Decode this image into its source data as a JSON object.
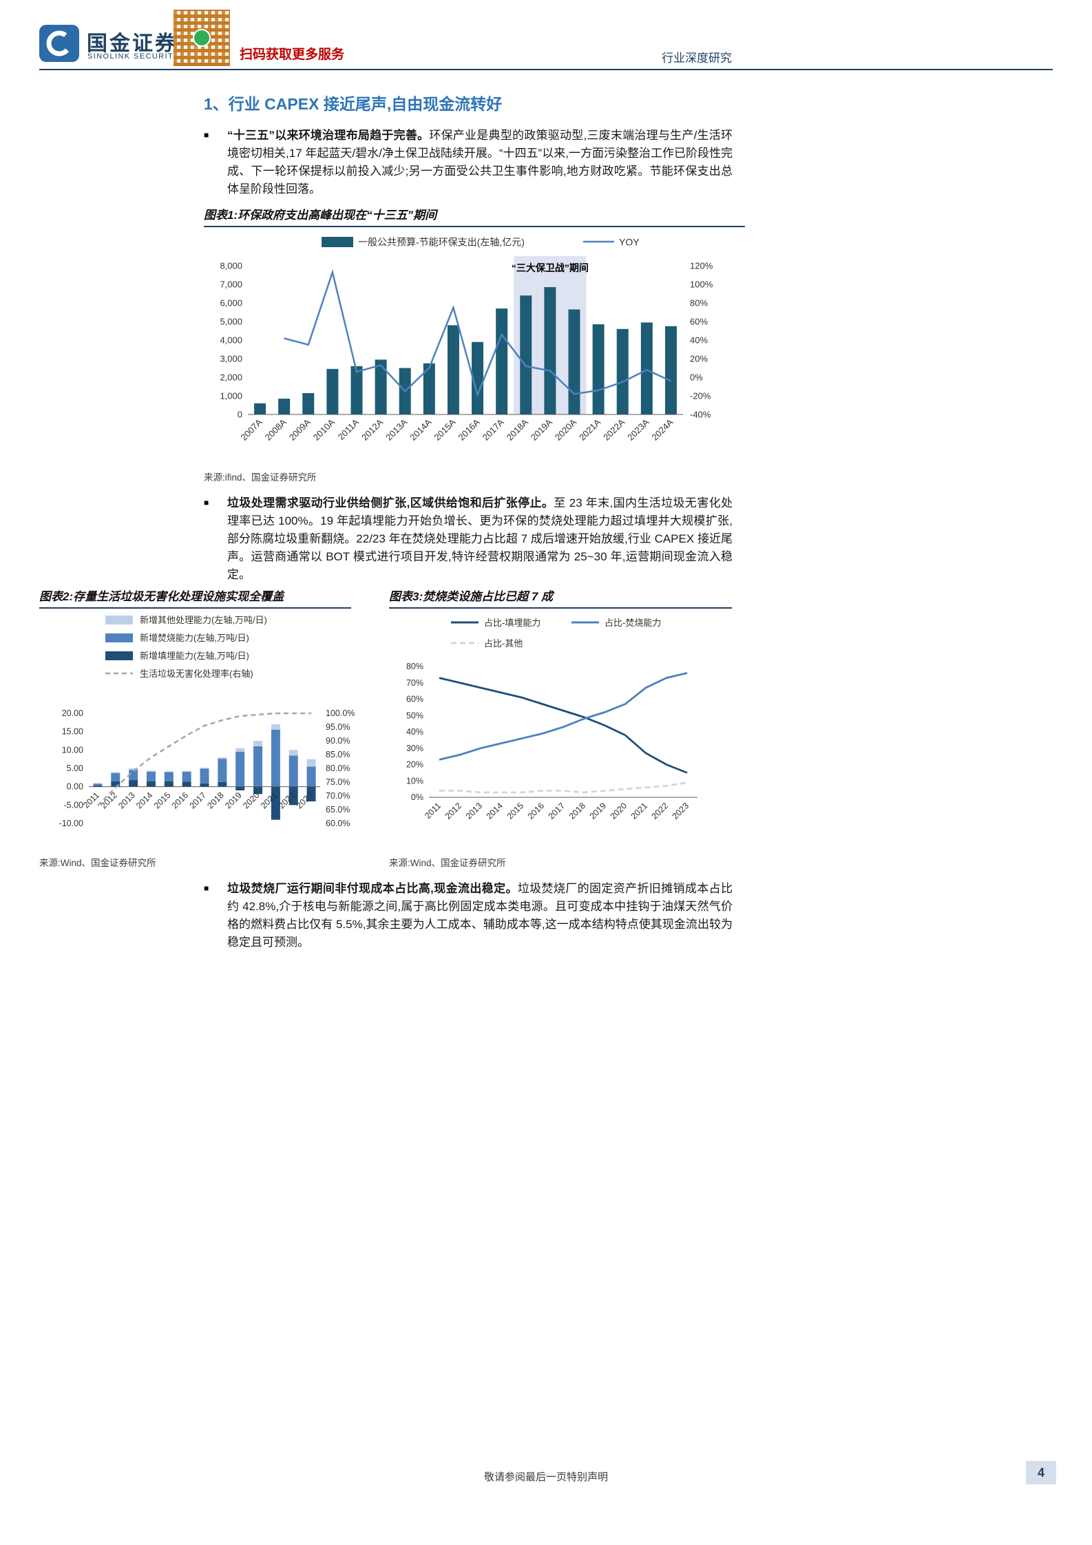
{
  "glyphs": {
    "bullet": "■"
  },
  "header": {
    "brand_cn": "国金证券",
    "brand_en": "SINOLINK SECURITIES",
    "qr_caption": "扫码获取更多服务",
    "report_type": "行业深度研究"
  },
  "section": {
    "title": "1、行业 CAPEX 接近尾声,自由现金流转好"
  },
  "paragraphs": {
    "p1": {
      "lead": "“十三五”以来环境治理布局趋于完善。",
      "rest": "环保产业是典型的政策驱动型,三废末端治理与生产/生活环境密切相关,17 年起蓝天/碧水/净土保卫战陆续开展。“十四五”以来,一方面污染整治工作已阶段性完成、下一轮环保提标以前投入减少;另一方面受公共卫生事件影响,地方财政吃紧。节能环保支出总体呈阶段性回落。"
    },
    "p2": {
      "lead": "垃圾处理需求驱动行业供给侧扩张,区域供给饱和后扩张停止。",
      "rest": "至 23 年末,国内生活垃圾无害化处理率已达 100%。19 年起填埋能力开始负增长、更为环保的焚烧处理能力超过填埋并大规模扩张,部分陈腐垃圾重新翻烧。22/23 年在焚烧处理能力占比超 7 成后增速开始放缓,行业 CAPEX 接近尾声。运营商通常以 BOT 模式进行项目开发,特许经营权期限通常为 25~30 年,运营期间现金流入稳定。"
    },
    "p3": {
      "lead": "垃圾焚烧厂运行期间非付现成本占比高,现金流出稳定。",
      "rest": "垃圾焚烧厂的固定资产折旧摊销成本占比约 42.8%,介于核电与新能源之间,属于高比例固定成本类电源。且可变成本中挂钩于油煤天然气价格的燃料费占比仅有 5.5%,其余主要为人工成本、辅助成本等,这一成本结构特点使其现金流出较为稳定且可预测。"
    }
  },
  "figure1": {
    "title": "图表1:环保政府支出高峰出现在“十三五”期间",
    "source": "来源:ifind、国金证券研究所"
  },
  "figure2": {
    "title": "图表2:存量生活垃圾无害化处理设施实现全覆盖",
    "source": "来源:Wind、国金证券研究所"
  },
  "figure3": {
    "title": "图表3:焚烧类设施占比已超 7 成",
    "source": "来源:Wind、国金证券研究所"
  },
  "footer": {
    "disclaimer": "敬请参阅最后一页特别声明",
    "page_number": "4"
  },
  "chart_data": [
    {
      "id": "fig1",
      "type": "bar",
      "subtype": "bar+line-dual-axis",
      "title": "环保政府支出高峰出现在“十三五”期间",
      "legend": [
        "一般公共预算-节能环保支出(左轴,亿元)",
        "YOY"
      ],
      "categories": [
        "2007A",
        "2008A",
        "2009A",
        "2010A",
        "2011A",
        "2012A",
        "2013A",
        "2014A",
        "2015A",
        "2016A",
        "2017A",
        "2018A",
        "2019A",
        "2020A",
        "2021A",
        "2022A",
        "2023A",
        "2024A"
      ],
      "bar_values": [
        600,
        850,
        1150,
        2450,
        2600,
        2950,
        2500,
        2750,
        4800,
        3900,
        5700,
        6400,
        6850,
        5650,
        4850,
        4600,
        4950,
        4750
      ],
      "line_values_pct": [
        null,
        42,
        35,
        113,
        6,
        13,
        -15,
        10,
        75,
        -19,
        46,
        12,
        7,
        -18,
        -14,
        -5,
        8,
        -4
      ],
      "left_axis": {
        "min": 0,
        "max": 8000,
        "ticks": [
          0,
          1000,
          2000,
          3000,
          4000,
          5000,
          6000,
          7000,
          8000
        ]
      },
      "right_axis": {
        "min": -40,
        "max": 120,
        "ticks": [
          -40,
          -20,
          0,
          20,
          40,
          60,
          80,
          100,
          120
        ]
      },
      "highlight": {
        "label": "“三大保卫战”期间",
        "from": "2018A",
        "to": "2020A"
      },
      "colors": {
        "bar": "#1D5C74",
        "line": "#4F81BD",
        "highlight": "#DEE3F2"
      }
    },
    {
      "id": "fig2",
      "type": "bar",
      "subtype": "stacked-bar+line-dual-axis",
      "title": "存量生活垃圾无害化处理设施实现全覆盖",
      "legend": [
        "新增其他处理能力(左轴,万吨/日)",
        "新增焚烧能力(左轴,万吨/日)",
        "新增填埋能力(左轴,万吨/日)",
        "生活垃圾无害化处理率(右轴)"
      ],
      "categories": [
        2011,
        2012,
        2013,
        2014,
        2015,
        2016,
        2017,
        2018,
        2019,
        2020,
        2021,
        2022,
        2023
      ],
      "series": {
        "other": [
          0.2,
          0.3,
          0.4,
          0.3,
          0.2,
          0.2,
          0.3,
          0.4,
          1.0,
          1.5,
          1.5,
          1.5,
          2.0
        ],
        "incineration": [
          0.5,
          2.2,
          2.8,
          2.6,
          2.5,
          2.7,
          4.0,
          6.3,
          9.5,
          11.0,
          15.5,
          8.5,
          5.5
        ],
        "landfill": [
          0.3,
          1.5,
          1.8,
          1.5,
          1.5,
          1.4,
          0.9,
          1.3,
          -1.0,
          -2.0,
          -9.0,
          -5.0,
          -4.0
        ]
      },
      "rate_line_pct": [
        66.5,
        73,
        79,
        84,
        88,
        92,
        95.5,
        97.5,
        99,
        99.5,
        100,
        100,
        100
      ],
      "left_axis": {
        "min": -10,
        "max": 20,
        "ticks": [
          20,
          15,
          10,
          5,
          0,
          -5,
          -10
        ]
      },
      "right_axis": {
        "min": 60,
        "max": 100,
        "ticks": [
          100,
          95,
          90,
          85,
          80,
          75,
          70,
          65,
          60
        ]
      },
      "colors": {
        "other": "#BCCFE8",
        "incineration": "#4F81BD",
        "landfill": "#1F4E79",
        "rate": "#A6A6A6"
      }
    },
    {
      "id": "fig3",
      "type": "line",
      "title": "焚烧类设施占比已超 7 成",
      "categories": [
        2011,
        2012,
        2013,
        2014,
        2015,
        2016,
        2017,
        2018,
        2019,
        2020,
        2021,
        2022,
        2023
      ],
      "series": [
        {
          "name": "占比-填埋能力",
          "values": [
            73,
            70,
            67,
            64,
            61,
            57,
            53,
            49,
            44,
            38,
            27,
            20,
            15
          ],
          "color": "#1F4E79",
          "dash": false
        },
        {
          "name": "占比-焚烧能力",
          "values": [
            23,
            26,
            30,
            33,
            36,
            39,
            43,
            48,
            52,
            57,
            67,
            73,
            76
          ],
          "color": "#4F81BD",
          "dash": false
        },
        {
          "name": "占比-其他",
          "values": [
            4,
            4,
            3,
            3,
            3,
            4,
            4,
            3,
            4,
            5,
            6,
            7,
            9
          ],
          "color": "#C9D7EB",
          "dash": true
        }
      ],
      "y_axis": {
        "min": 0,
        "max": 80,
        "ticks": [
          0,
          10,
          20,
          30,
          40,
          50,
          60,
          70,
          80
        ]
      }
    }
  ]
}
